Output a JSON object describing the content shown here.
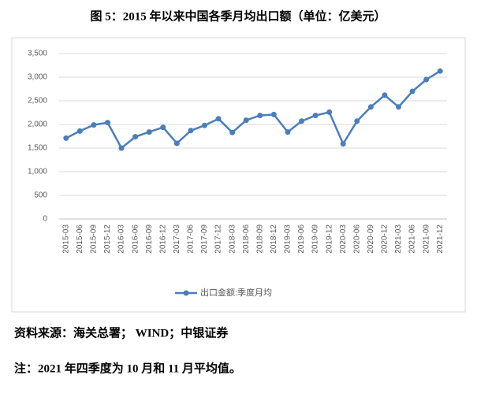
{
  "title": "图 5：2015 年以来中国各季月均出口额（单位：亿美元）",
  "chart_data": {
    "type": "line",
    "categories": [
      "2015-03",
      "2015-06",
      "2015-09",
      "2015-12",
      "2016-03",
      "2016-06",
      "2016-09",
      "2016-12",
      "2017-03",
      "2017-06",
      "2017-09",
      "2017-12",
      "2018-03",
      "2018-06",
      "2018-09",
      "2018-12",
      "2019-03",
      "2019-06",
      "2019-09",
      "2019-12",
      "2020-03",
      "2020-06",
      "2020-09",
      "2020-12",
      "2021-03",
      "2021-06",
      "2021-09",
      "2021-12"
    ],
    "series": [
      {
        "name": "出口金额:季度月均",
        "color": "#4a7ebb",
        "values": [
          1710,
          1860,
          1990,
          2040,
          1500,
          1740,
          1840,
          1940,
          1600,
          1870,
          1980,
          2120,
          1830,
          2090,
          2190,
          2210,
          1840,
          2070,
          2190,
          2260,
          1590,
          2070,
          2370,
          2620,
          2370,
          2700,
          2950,
          3130
        ]
      }
    ],
    "ylim": [
      0,
      3500
    ],
    "yticks": [
      0,
      500,
      {
        "value": 1000,
        "label": "1,000"
      },
      {
        "value": 1500,
        "label": "1,500"
      },
      {
        "value": 2000,
        "label": "2,000"
      },
      {
        "value": 2500,
        "label": "2,500"
      },
      {
        "value": 3000,
        "label": "3,000"
      },
      {
        "value": 3500,
        "label": "3,500"
      }
    ],
    "grid": true,
    "legend": "bottom"
  },
  "source": "资料来源：海关总署； WIND；中银证券",
  "note": "注：2021 年四季度为 10 月和 11 月平均值。"
}
